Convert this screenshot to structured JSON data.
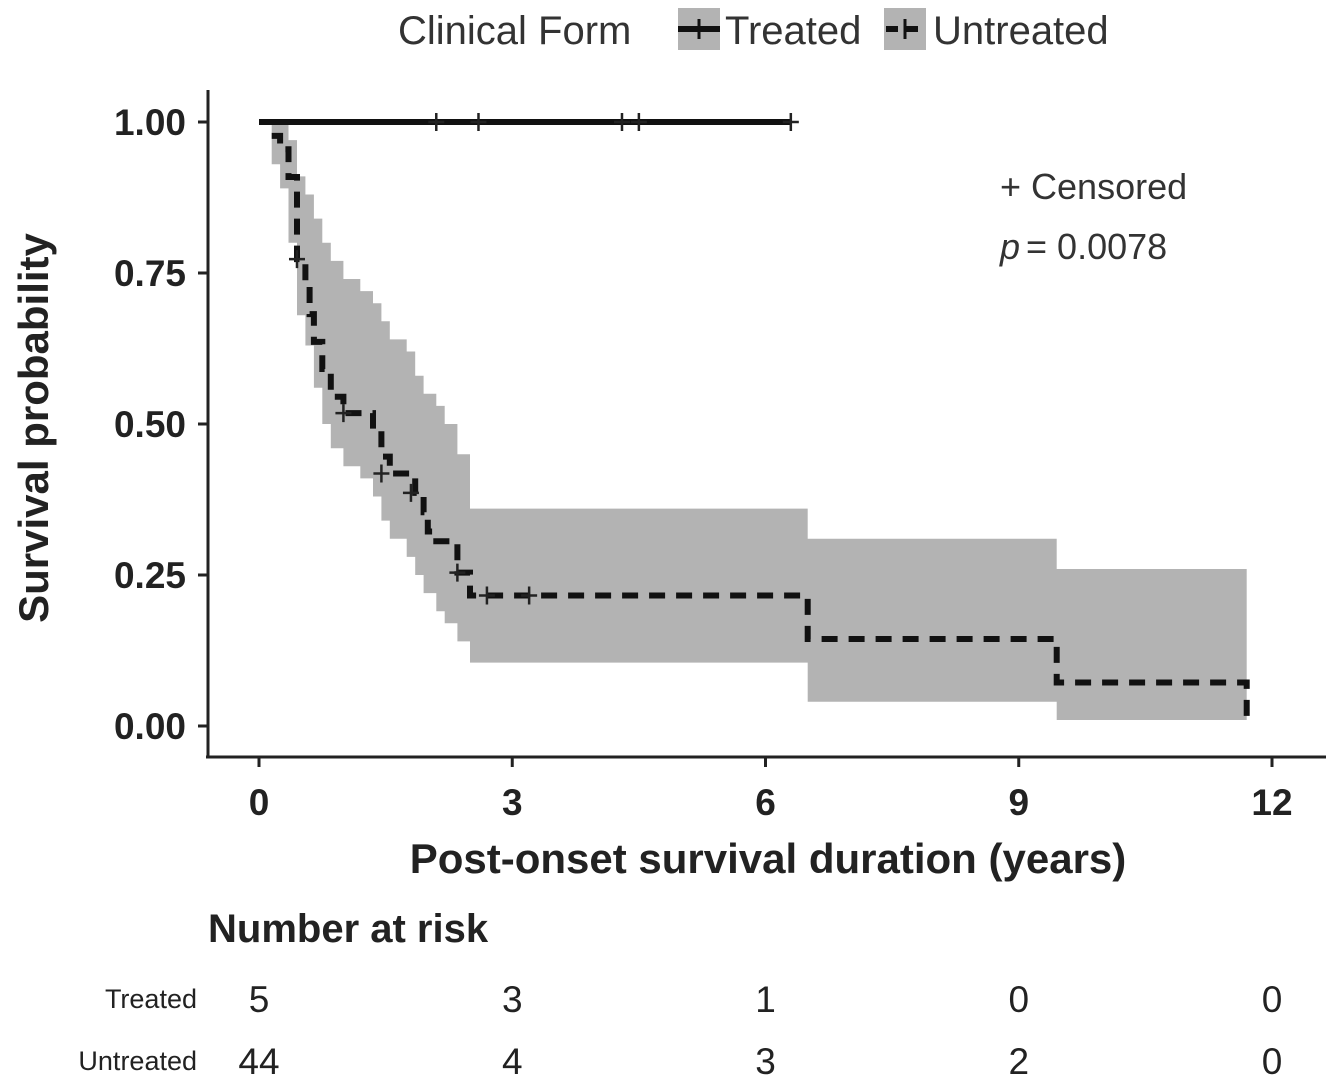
{
  "legend": {
    "title": "Clinical Form",
    "items": [
      {
        "label": "Treated",
        "linestyle": "solid"
      },
      {
        "label": "Untreated",
        "linestyle": "dashed"
      }
    ]
  },
  "annotations": {
    "censored_note": "+ Censored",
    "p_label": "p",
    "p_value": "= 0.0078"
  },
  "chart_data": {
    "type": "line",
    "subtype": "kaplan-meier survival curve with confidence band",
    "xlabel": "Post-onset survival duration (years)",
    "ylabel": "Survival probability",
    "xlim": [
      0,
      12
    ],
    "ylim": [
      0,
      1
    ],
    "x_ticks": [
      0,
      3,
      6,
      9,
      12
    ],
    "y_ticks": [
      "0.00",
      "0.25",
      "0.50",
      "0.75",
      "1.00"
    ],
    "grid": false,
    "legend_position": "top",
    "series": [
      {
        "name": "Treated",
        "color": "#111111",
        "linestyle": "solid",
        "steps": [
          [
            0,
            1.0
          ],
          [
            6.3,
            1.0
          ]
        ],
        "censored": [
          [
            2.1,
            1.0
          ],
          [
            2.6,
            1.0
          ],
          [
            4.3,
            1.0
          ],
          [
            4.5,
            1.0
          ],
          [
            6.3,
            1.0
          ]
        ],
        "ci": []
      },
      {
        "name": "Untreated",
        "color": "#111111",
        "linestyle": "dashed",
        "steps": [
          [
            0.15,
            0.977
          ],
          [
            0.25,
            0.955
          ],
          [
            0.35,
            0.909
          ],
          [
            0.45,
            0.773
          ],
          [
            0.55,
            0.727
          ],
          [
            0.6,
            0.682
          ],
          [
            0.65,
            0.636
          ],
          [
            0.75,
            0.591
          ],
          [
            0.85,
            0.545
          ],
          [
            1.0,
            0.518
          ],
          [
            1.35,
            0.489
          ],
          [
            1.45,
            0.446
          ],
          [
            1.55,
            0.418
          ],
          [
            1.85,
            0.386
          ],
          [
            1.95,
            0.354
          ],
          [
            2.0,
            0.322
          ],
          [
            2.1,
            0.306
          ],
          [
            2.35,
            0.254
          ],
          [
            2.5,
            0.216
          ],
          [
            6.5,
            0.216
          ],
          [
            6.5,
            0.144
          ],
          [
            9.45,
            0.144
          ],
          [
            9.45,
            0.072
          ],
          [
            11.7,
            0.072
          ],
          [
            11.7,
            0.0
          ]
        ],
        "censored": [
          [
            0.45,
            0.773
          ],
          [
            1.0,
            0.518
          ],
          [
            1.45,
            0.418
          ],
          [
            1.8,
            0.386
          ],
          [
            2.35,
            0.254
          ],
          [
            2.7,
            0.216
          ],
          [
            3.2,
            0.216
          ]
        ],
        "ci": [
          [
            0.15,
            0.93,
            1.0
          ],
          [
            0.25,
            0.89,
            1.0
          ],
          [
            0.35,
            0.8,
            0.97
          ],
          [
            0.45,
            0.68,
            0.91
          ],
          [
            0.55,
            0.63,
            0.88
          ],
          [
            0.65,
            0.56,
            0.84
          ],
          [
            0.75,
            0.5,
            0.8
          ],
          [
            0.85,
            0.46,
            0.77
          ],
          [
            1.0,
            0.43,
            0.74
          ],
          [
            1.2,
            0.41,
            0.72
          ],
          [
            1.35,
            0.38,
            0.7
          ],
          [
            1.45,
            0.34,
            0.67
          ],
          [
            1.55,
            0.31,
            0.64
          ],
          [
            1.75,
            0.28,
            0.62
          ],
          [
            1.85,
            0.25,
            0.58
          ],
          [
            1.95,
            0.22,
            0.55
          ],
          [
            2.1,
            0.19,
            0.53
          ],
          [
            2.2,
            0.17,
            0.5
          ],
          [
            2.35,
            0.14,
            0.45
          ],
          [
            2.5,
            0.105,
            0.36
          ],
          [
            6.5,
            0.04,
            0.31
          ],
          [
            9.45,
            0.01,
            0.26
          ],
          [
            11.7,
            0.0,
            0.26
          ]
        ]
      }
    ]
  },
  "risk_table": {
    "title": "Number at risk",
    "times": [
      0,
      3,
      6,
      9,
      12
    ],
    "rows": [
      {
        "group": "Treated",
        "counts": [
          "5",
          "3",
          "1",
          "0",
          "0"
        ]
      },
      {
        "group": "Untreated",
        "counts": [
          "44",
          "4",
          "3",
          "2",
          "0"
        ]
      }
    ]
  }
}
